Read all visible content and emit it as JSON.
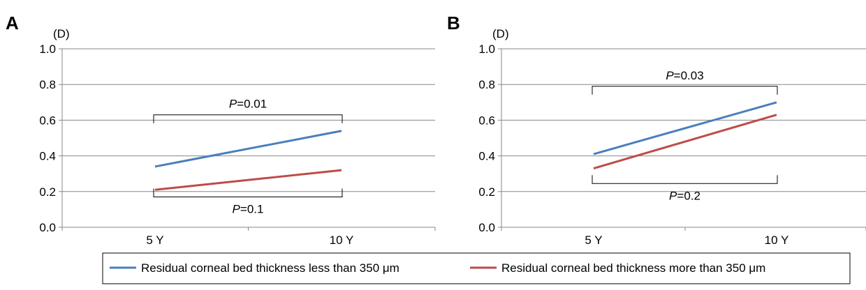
{
  "chart_data": [
    {
      "type": "line",
      "panel": "A",
      "ylabel": "(D)",
      "categories": [
        "5 Y",
        "10 Y"
      ],
      "ylim": [
        0.0,
        1.0
      ],
      "yticks": [
        "0.0",
        "0.2",
        "0.4",
        "0.6",
        "0.8",
        "1.0"
      ],
      "grid": true,
      "series": [
        {
          "name": "Residual corneal bed thickness less than 350 μm",
          "color": "#4a7ebb",
          "values": [
            0.34,
            0.54
          ]
        },
        {
          "name": "Residual corneal bed thickness more than 350 μm",
          "color": "#be4b48",
          "values": [
            0.21,
            0.32
          ]
        }
      ],
      "annotations": [
        {
          "p_label": "P",
          "p_value": "=0.01",
          "position": "above",
          "bracket_at": 0.63
        },
        {
          "p_label": "P",
          "p_value": "=0.1",
          "position": "below",
          "bracket_at": 0.17
        }
      ]
    },
    {
      "type": "line",
      "panel": "B",
      "ylabel": "(D)",
      "categories": [
        "5 Y",
        "10 Y"
      ],
      "ylim": [
        0.0,
        1.0
      ],
      "yticks": [
        "0.0",
        "0.2",
        "0.4",
        "0.6",
        "0.8",
        "1.0"
      ],
      "grid": true,
      "series": [
        {
          "name": "Residual corneal bed thickness less than 350 μm",
          "color": "#4a7ebb",
          "values": [
            0.41,
            0.7
          ]
        },
        {
          "name": "Residual corneal bed thickness more than 350 μm",
          "color": "#be4b48",
          "values": [
            0.33,
            0.63
          ]
        }
      ],
      "annotations": [
        {
          "p_label": "P",
          "p_value": "=0.03",
          "position": "above",
          "bracket_at": 0.79
        },
        {
          "p_label": "P",
          "p_value": "=0.2",
          "position": "below",
          "bracket_at": 0.245
        }
      ]
    }
  ],
  "legend": {
    "placement": "bottom",
    "items": [
      {
        "label": "Residual corneal bed thickness less than 350 μm",
        "color": "#4a7ebb"
      },
      {
        "label": "Residual corneal bed thickness more than 350 μm",
        "color": "#be4b48"
      }
    ]
  }
}
